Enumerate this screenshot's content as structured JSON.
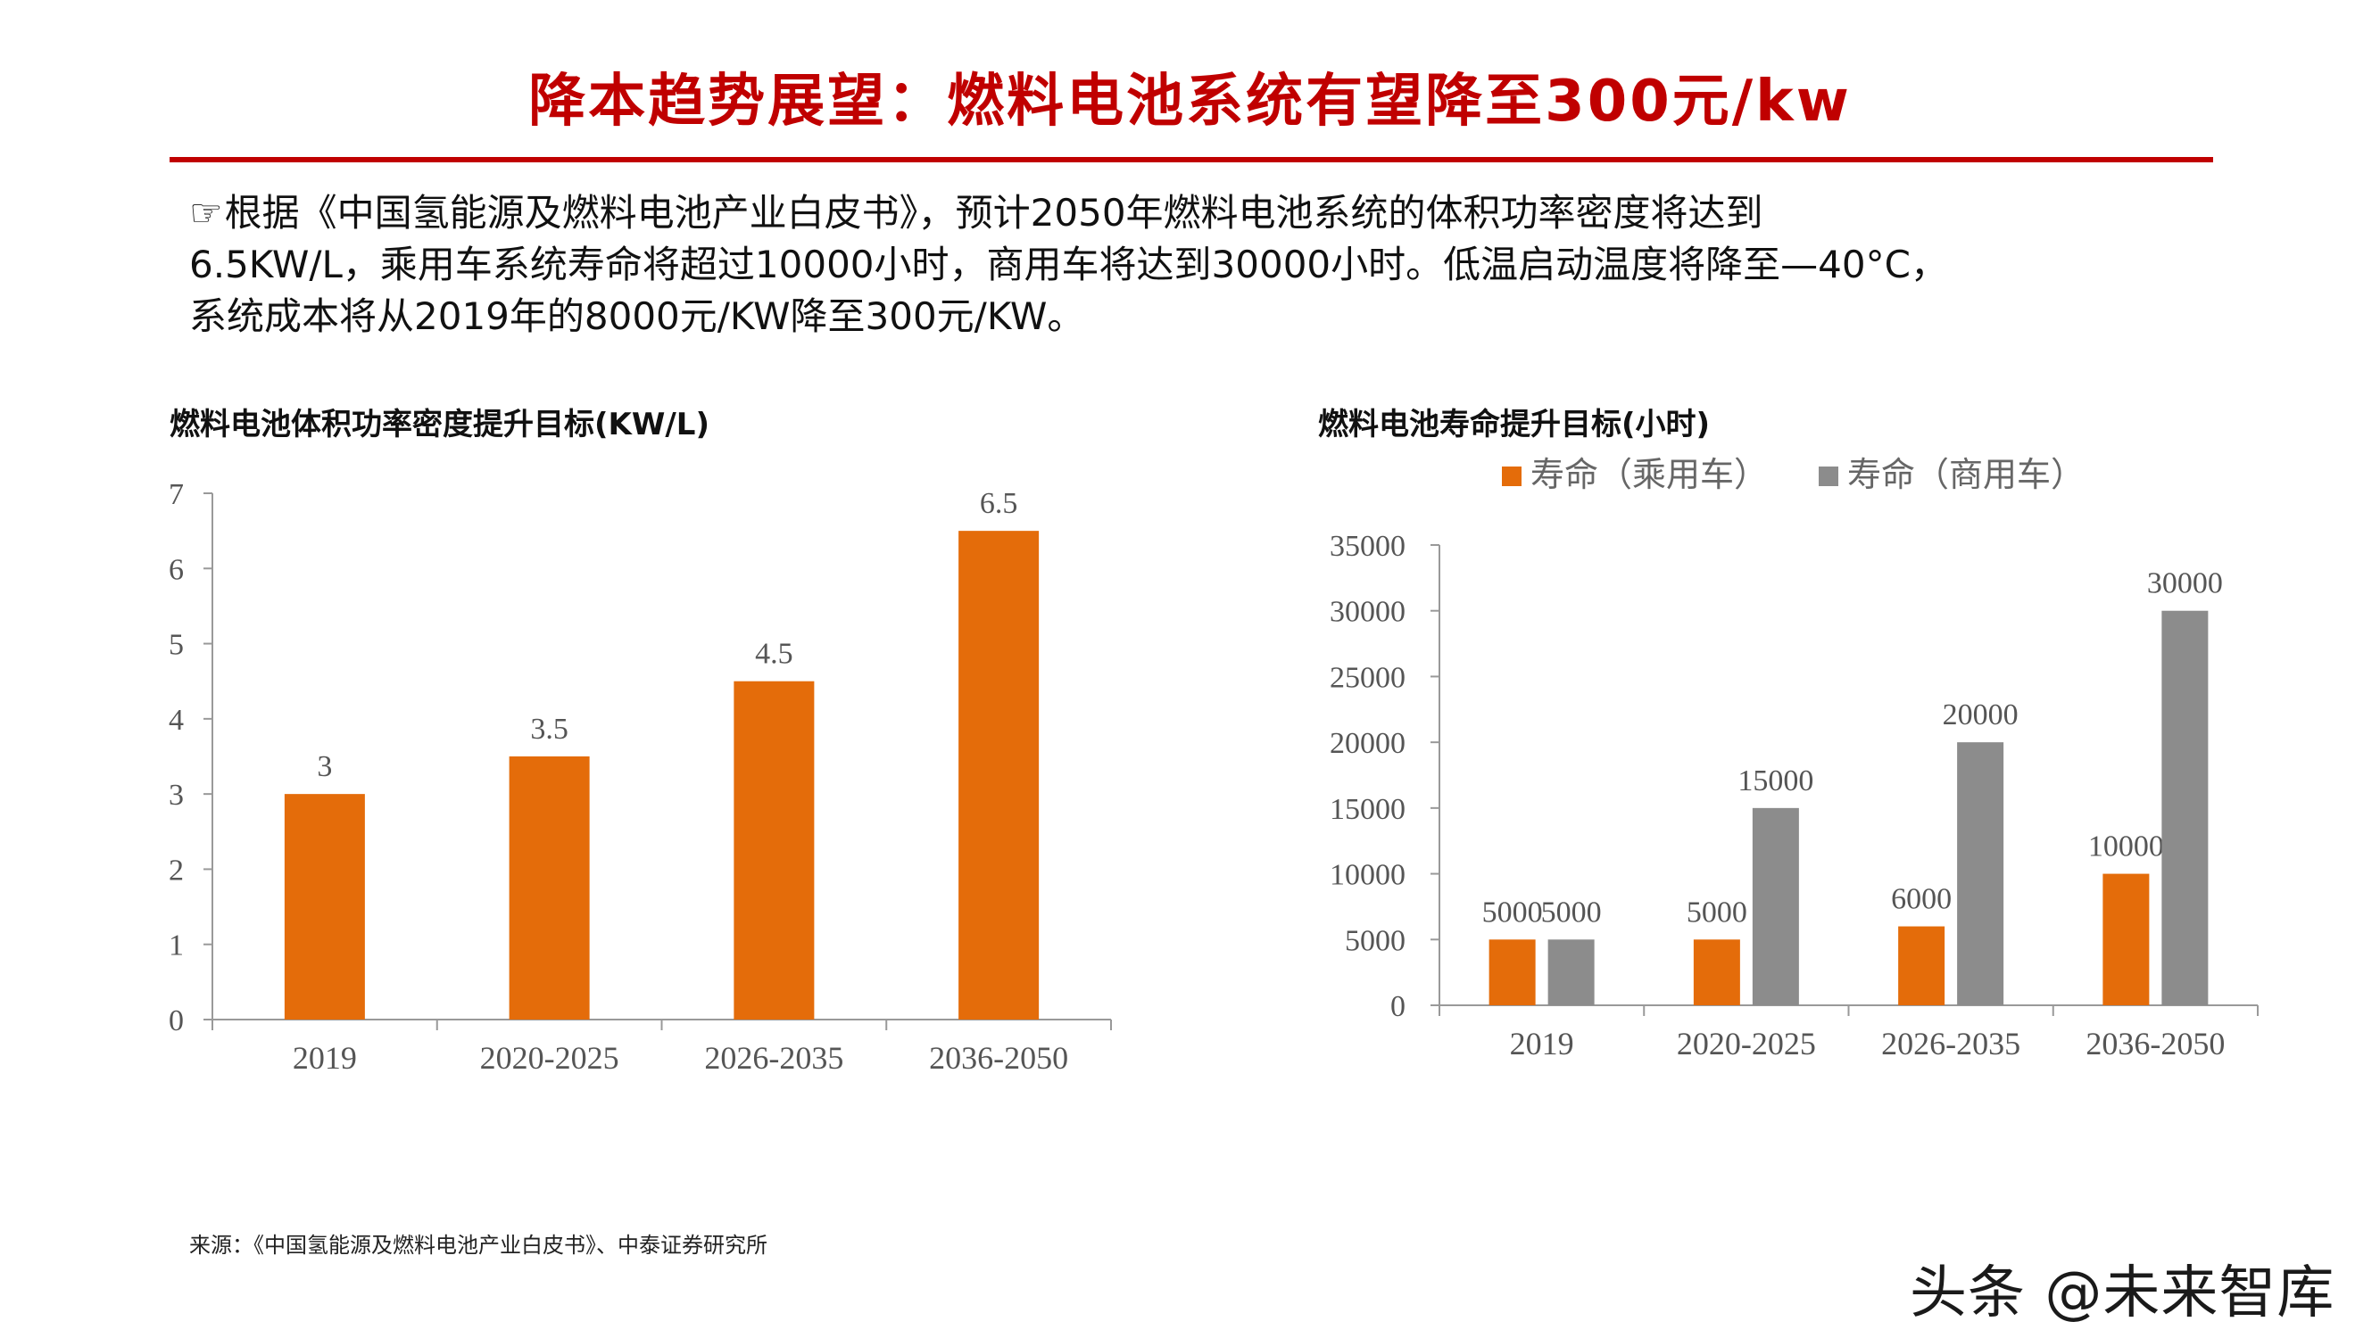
{
  "title": "降本趋势展望：燃料电池系统有望降至300元/kw",
  "intro": {
    "icon": "pointing-hand-icon",
    "line1": "根据《中国氢能源及燃料电池产业白皮书》，预计2050年燃料电池系统的体积功率密度将达到",
    "line2": "6.5KW/L，乘用车系统寿命将超过10000小时，商用车将达到30000小时。低温启动温度将降至—40°C，",
    "line3": "系统成本将从2019年的8000元/KW降至300元/KW。"
  },
  "chart_data": [
    {
      "type": "bar",
      "title": "燃料电池体积功率密度提升目标(KW/L)",
      "categories": [
        "2019",
        "2020-2025",
        "2026-2035",
        "2036-2050"
      ],
      "values": [
        3,
        3.5,
        4.5,
        6.5
      ],
      "ylim": [
        0,
        7
      ],
      "yticks": [
        0,
        1,
        2,
        3,
        4,
        5,
        6,
        7
      ],
      "xlabel": "",
      "ylabel": "",
      "color": "#e46c0a",
      "grid": false
    },
    {
      "type": "bar",
      "title": "燃料电池寿命提升目标(小时)",
      "categories": [
        "2019",
        "2020-2025",
        "2026-2035",
        "2036-2050"
      ],
      "series": [
        {
          "name": "寿命（乘用车）",
          "values": [
            5000,
            5000,
            6000,
            10000
          ],
          "color": "#e46c0a"
        },
        {
          "name": "寿命（商用车）",
          "values": [
            5000,
            15000,
            20000,
            30000
          ],
          "color": "#8c8c8c"
        }
      ],
      "ylim": [
        0,
        35000
      ],
      "yticks": [
        0,
        5000,
        10000,
        15000,
        20000,
        25000,
        30000,
        35000
      ],
      "legend": "top",
      "xlabel": "",
      "ylabel": "",
      "grid": false
    }
  ],
  "source": "来源：《中国氢能源及燃料电池产业白皮书》、中泰证券研究所",
  "watermark": "头条 @未来智库",
  "colors": {
    "title": "#c00000",
    "accent": "#e46c0a",
    "gray": "#8c8c8c"
  }
}
